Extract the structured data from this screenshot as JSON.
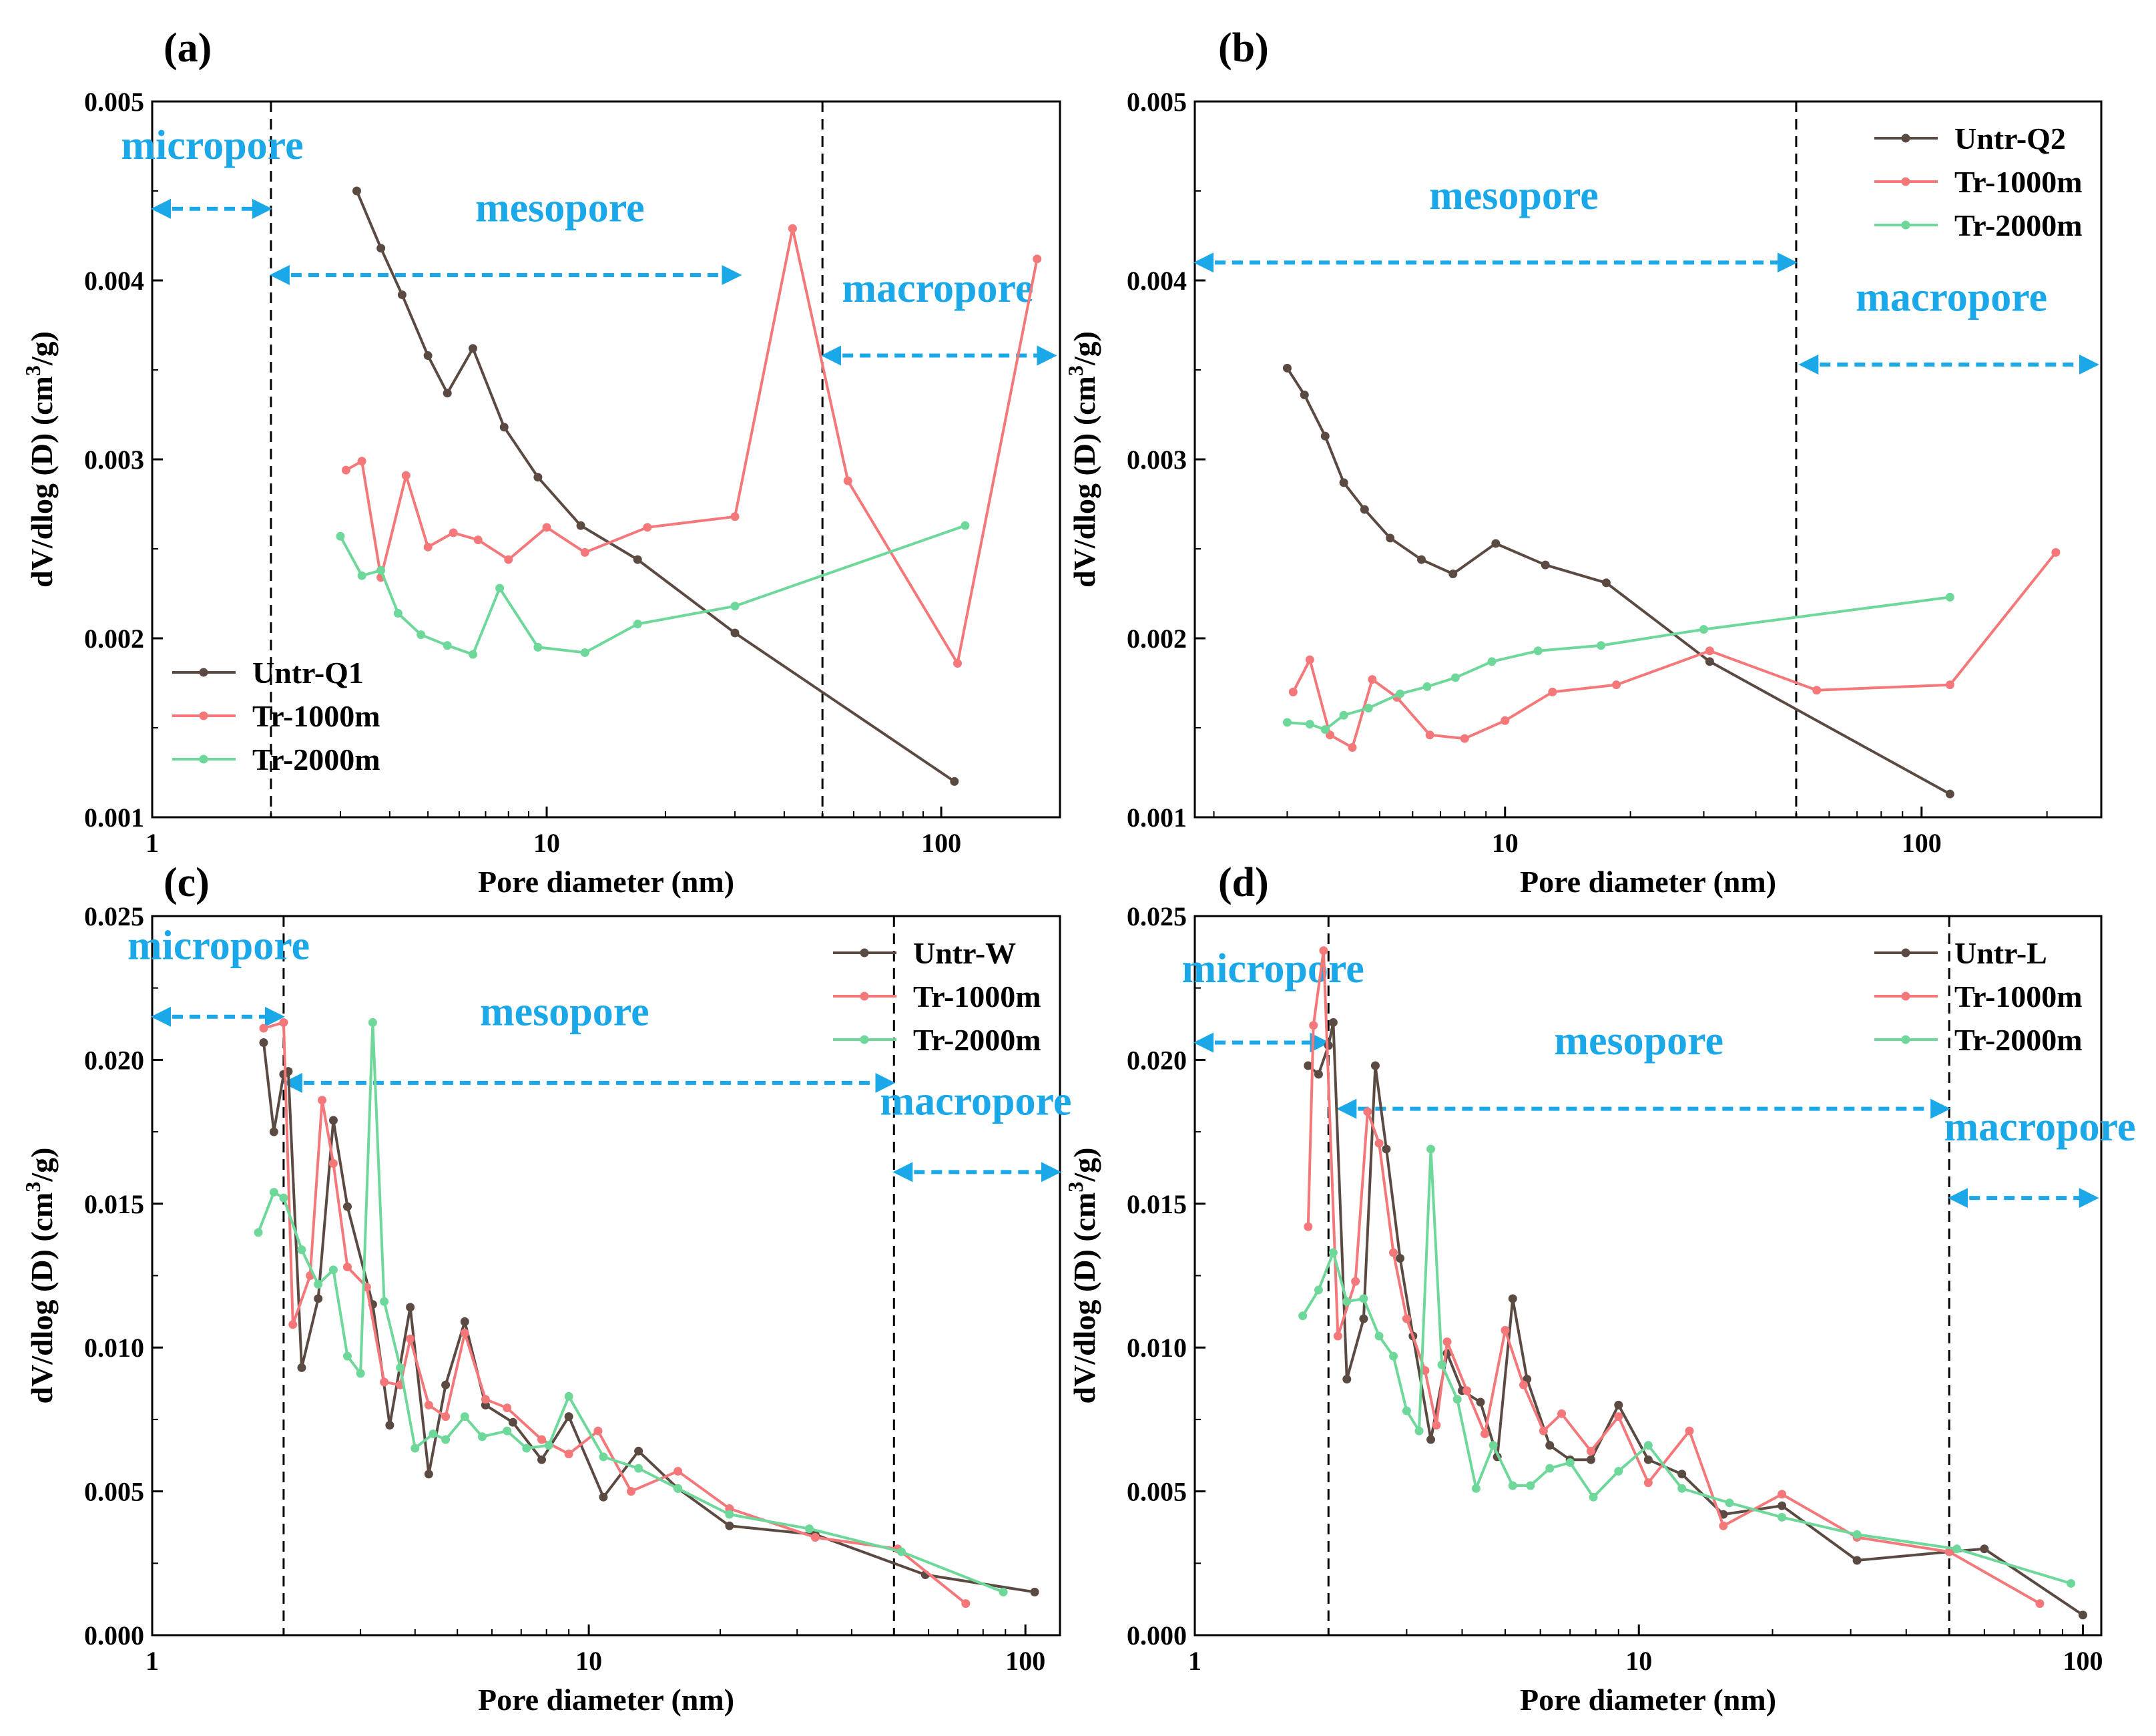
{
  "colors": {
    "untreated": "#5B4A42",
    "tr1000": "#F4777A",
    "tr2000": "#6DD89A",
    "region": "#1BA8E8",
    "axis": "#000000"
  },
  "chart_data": [
    {
      "panel_label": "(a)",
      "type": "line",
      "xscale": "log",
      "xlim": [
        1,
        200
      ],
      "ylim": [
        0.001,
        0.005
      ],
      "xticks": [
        1,
        10,
        100
      ],
      "xtick_labels": [
        "1",
        "10",
        "100"
      ],
      "yticks": [
        0.001,
        0.002,
        0.003,
        0.004,
        0.005
      ],
      "ytick_labels": [
        "0.001",
        "0.002",
        "0.003",
        "0.004",
        "0.005"
      ],
      "xlabel": "Pore diameter (nm)",
      "ylabel_prefix": "dV/dlog (D) (cm",
      "ylabel_sup": "3",
      "ylabel_suffix": "/g)",
      "legend_position": "bottom-left",
      "boundaries": [
        2,
        50
      ],
      "regions": [
        {
          "label": "micropore",
          "x_from": 1,
          "x_to": 2,
          "y_arrow": 0.0044,
          "y_text": 0.00468,
          "x_text": 1.42
        },
        {
          "label": "mesopore",
          "x_from": 2,
          "x_to": 31,
          "y_arrow": 0.00403,
          "y_text": 0.00433,
          "x_text": 10.8
        },
        {
          "label": "macropore",
          "x_from": 50,
          "x_to": 195,
          "y_arrow": 0.00358,
          "y_text": 0.00388,
          "x_text": 98
        }
      ],
      "series": [
        {
          "name": "Untr-Q1",
          "color_key": "untreated",
          "x": [
            3.3,
            3.8,
            4.3,
            5.0,
            5.6,
            6.5,
            7.8,
            9.5,
            12.2,
            17,
            30,
            108
          ],
          "y": [
            0.0045,
            0.00418,
            0.00392,
            0.00358,
            0.00337,
            0.00362,
            0.00318,
            0.0029,
            0.00263,
            0.00244,
            0.00203,
            0.0012
          ]
        },
        {
          "name": "Tr-1000m",
          "color_key": "tr1000",
          "x": [
            3.1,
            3.4,
            3.8,
            4.4,
            5.0,
            5.8,
            6.7,
            8.0,
            10.0,
            12.5,
            18,
            30,
            42,
            58,
            110,
            175
          ],
          "y": [
            0.00294,
            0.00299,
            0.00234,
            0.00291,
            0.00251,
            0.00259,
            0.00255,
            0.00244,
            0.00262,
            0.00248,
            0.00262,
            0.00268,
            0.00429,
            0.00288,
            0.00186,
            0.00412
          ]
        },
        {
          "name": "Tr-2000m",
          "color_key": "tr2000",
          "x": [
            3.0,
            3.4,
            3.8,
            4.2,
            4.8,
            5.6,
            6.5,
            7.6,
            9.5,
            12.5,
            17,
            30,
            115
          ],
          "y": [
            0.00257,
            0.00235,
            0.00238,
            0.00214,
            0.00202,
            0.00196,
            0.00191,
            0.00228,
            0.00195,
            0.00192,
            0.00208,
            0.00218,
            0.00263
          ]
        }
      ]
    },
    {
      "panel_label": "(b)",
      "type": "line",
      "xscale": "log",
      "xlim": [
        1.8,
        270
      ],
      "ylim": [
        0.001,
        0.005
      ],
      "xticks": [
        10,
        100
      ],
      "xtick_labels": [
        "10",
        "100"
      ],
      "yticks": [
        0.001,
        0.002,
        0.003,
        0.004,
        0.005
      ],
      "ytick_labels": [
        "0.001",
        "0.002",
        "0.003",
        "0.004",
        "0.005"
      ],
      "xlabel": "Pore diameter (nm)",
      "ylabel_prefix": "dV/dlog (D) (cm",
      "ylabel_sup": "3",
      "ylabel_suffix": "/g)",
      "legend_position": "top-right",
      "boundaries": [
        50
      ],
      "regions": [
        {
          "label": "mesopore",
          "x_from": 1.8,
          "x_to": 50,
          "y_arrow": 0.0041,
          "y_text": 0.0044,
          "x_text": 10.5
        },
        {
          "label": "macropore",
          "x_from": 51,
          "x_to": 265,
          "y_arrow": 0.00353,
          "y_text": 0.00383,
          "x_text": 118
        }
      ],
      "series": [
        {
          "name": "Untr-Q2",
          "color_key": "untreated",
          "x": [
            3.0,
            3.3,
            3.7,
            4.1,
            4.6,
            5.3,
            6.3,
            7.5,
            9.5,
            12.5,
            17.5,
            31,
            117
          ],
          "y": [
            0.00351,
            0.00336,
            0.00313,
            0.00287,
            0.00272,
            0.00256,
            0.00244,
            0.00236,
            0.00253,
            0.00241,
            0.00231,
            0.00187,
            0.00113
          ]
        },
        {
          "name": "Tr-1000m",
          "color_key": "tr1000",
          "x": [
            3.1,
            3.4,
            3.8,
            4.3,
            4.8,
            5.5,
            6.6,
            8.0,
            10.0,
            13.0,
            18.5,
            31,
            56,
            117,
            210
          ],
          "y": [
            0.0017,
            0.00188,
            0.00146,
            0.00139,
            0.00177,
            0.00167,
            0.00146,
            0.00144,
            0.00154,
            0.0017,
            0.00174,
            0.00193,
            0.00171,
            0.00174,
            0.00248
          ]
        },
        {
          "name": "Tr-2000m",
          "color_key": "tr2000",
          "x": [
            3.0,
            3.4,
            3.7,
            4.1,
            4.7,
            5.6,
            6.5,
            7.6,
            9.3,
            12,
            17,
            30,
            117
          ],
          "y": [
            0.00153,
            0.00152,
            0.00149,
            0.00157,
            0.00161,
            0.00169,
            0.00173,
            0.00178,
            0.00187,
            0.00193,
            0.00196,
            0.00205,
            0.00223
          ]
        }
      ]
    },
    {
      "panel_label": "(c)",
      "type": "line",
      "xscale": "log",
      "xlim": [
        1,
        120
      ],
      "ylim": [
        0,
        0.025
      ],
      "xticks": [
        1,
        10,
        100
      ],
      "xtick_labels": [
        "1",
        "10",
        "100"
      ],
      "yticks": [
        0,
        0.005,
        0.01,
        0.015,
        0.02,
        0.025
      ],
      "ytick_labels": [
        "0.000",
        "0.005",
        "0.010",
        "0.015",
        "0.020",
        "0.025"
      ],
      "xlabel": "Pore diameter (nm)",
      "ylabel_prefix": "dV/dlog (D) (cm",
      "ylabel_sup": "3",
      "ylabel_suffix": "/g)",
      "legend_position": "top-right",
      "boundaries": [
        2,
        50
      ],
      "regions": [
        {
          "label": "micropore",
          "x_from": 1,
          "x_to": 2,
          "y_arrow": 0.0215,
          "y_text": 0.0235,
          "x_text": 1.42
        },
        {
          "label": "mesopore",
          "x_from": 2,
          "x_to": 50,
          "y_arrow": 0.0192,
          "y_text": 0.0212,
          "x_text": 8.8
        },
        {
          "label": "macropore",
          "x_from": 50,
          "x_to": 120,
          "y_arrow": 0.0161,
          "y_text": 0.0181,
          "x_text": 77
        }
      ],
      "series": [
        {
          "name": "Untr-W",
          "color_key": "untreated",
          "x": [
            1.8,
            1.9,
            2.0,
            2.05,
            2.2,
            2.4,
            2.6,
            2.8,
            3.2,
            3.5,
            3.9,
            4.3,
            4.7,
            5.2,
            5.8,
            6.7,
            7.8,
            9.0,
            10.8,
            13.0,
            16.0,
            21,
            33,
            59,
            105
          ],
          "y": [
            0.0206,
            0.0175,
            0.0195,
            0.0196,
            0.0093,
            0.0117,
            0.0179,
            0.0149,
            0.0115,
            0.0073,
            0.0114,
            0.0056,
            0.0087,
            0.0109,
            0.008,
            0.0074,
            0.0061,
            0.0076,
            0.0048,
            0.0064,
            0.0051,
            0.0038,
            0.0035,
            0.0021,
            0.0015
          ]
        },
        {
          "name": "Tr-1000m",
          "color_key": "tr1000",
          "x": [
            1.8,
            2.0,
            2.1,
            2.3,
            2.45,
            2.6,
            2.8,
            3.1,
            3.4,
            3.7,
            3.9,
            4.3,
            4.7,
            5.2,
            5.8,
            6.5,
            7.8,
            9.0,
            10.5,
            12.5,
            16.0,
            21,
            33,
            51,
            73
          ],
          "y": [
            0.0211,
            0.0213,
            0.0108,
            0.0125,
            0.0186,
            0.0164,
            0.0128,
            0.0121,
            0.0088,
            0.0087,
            0.0103,
            0.008,
            0.0076,
            0.0105,
            0.0082,
            0.0079,
            0.0068,
            0.0063,
            0.0071,
            0.005,
            0.0057,
            0.0044,
            0.0034,
            0.003,
            0.0011
          ]
        },
        {
          "name": "Tr-2000m",
          "color_key": "tr2000",
          "x": [
            1.75,
            1.9,
            2.0,
            2.2,
            2.4,
            2.6,
            2.8,
            3.0,
            3.2,
            3.4,
            3.7,
            4.0,
            4.4,
            4.7,
            5.2,
            5.7,
            6.5,
            7.2,
            8.1,
            9.0,
            10.8,
            13.0,
            16.0,
            21,
            32,
            52,
            89
          ],
          "y": [
            0.014,
            0.0154,
            0.0152,
            0.0134,
            0.0122,
            0.0127,
            0.0097,
            0.0091,
            0.0213,
            0.0116,
            0.0093,
            0.0065,
            0.007,
            0.0068,
            0.0076,
            0.0069,
            0.0071,
            0.0065,
            0.0066,
            0.0083,
            0.0062,
            0.0058,
            0.0051,
            0.0042,
            0.0037,
            0.0029,
            0.0015
          ]
        }
      ]
    },
    {
      "panel_label": "(d)",
      "type": "line",
      "xscale": "log",
      "xlim": [
        1,
        110
      ],
      "ylim": [
        0,
        0.025
      ],
      "xticks": [
        1,
        10,
        100
      ],
      "xtick_labels": [
        "1",
        "10",
        "100"
      ],
      "yticks": [
        0,
        0.005,
        0.01,
        0.015,
        0.02,
        0.025
      ],
      "ytick_labels": [
        "0.000",
        "0.005",
        "0.010",
        "0.015",
        "0.020",
        "0.025"
      ],
      "xlabel": "Pore diameter (nm)",
      "ylabel_prefix": "dV/dlog (D) (cm",
      "ylabel_sup": "3",
      "ylabel_suffix": "/g)",
      "legend_position": "top-right",
      "boundaries": [
        2,
        50
      ],
      "regions": [
        {
          "label": "micropore",
          "x_from": 1,
          "x_to": 2,
          "y_arrow": 0.0206,
          "y_text": 0.0227,
          "x_text": 1.5
        },
        {
          "label": "mesopore",
          "x_from": 2.1,
          "x_to": 50,
          "y_arrow": 0.0183,
          "y_text": 0.0202,
          "x_text": 10
        },
        {
          "label": "macropore",
          "x_from": 50,
          "x_to": 108,
          "y_arrow": 0.0152,
          "y_text": 0.0172,
          "x_text": 80
        }
      ],
      "series": [
        {
          "name": "Untr-L",
          "color_key": "untreated",
          "x": [
            1.8,
            1.9,
            2.0,
            2.05,
            2.2,
            2.4,
            2.55,
            2.7,
            2.9,
            3.1,
            3.4,
            3.7,
            4.0,
            4.4,
            4.8,
            5.2,
            5.6,
            6.3,
            7.0,
            7.8,
            9.0,
            10.5,
            12.5,
            15.5,
            21,
            31,
            50,
            60,
            100
          ],
          "y": [
            0.0198,
            0.0195,
            0.0205,
            0.0213,
            0.0089,
            0.011,
            0.0198,
            0.0169,
            0.0131,
            0.0104,
            0.0068,
            0.0098,
            0.0085,
            0.0081,
            0.0062,
            0.0117,
            0.0089,
            0.0066,
            0.0061,
            0.0061,
            0.008,
            0.0061,
            0.0056,
            0.0042,
            0.0045,
            0.0026,
            0.0029,
            0.003,
            0.0007
          ]
        },
        {
          "name": "Tr-1000m",
          "color_key": "tr1000",
          "x": [
            1.8,
            1.85,
            1.95,
            2.1,
            2.3,
            2.45,
            2.6,
            2.8,
            3.0,
            3.3,
            3.5,
            3.7,
            4.1,
            4.5,
            5.0,
            5.5,
            6.1,
            6.7,
            7.8,
            9.0,
            10.5,
            13.0,
            15.5,
            21,
            31,
            50,
            80
          ],
          "y": [
            0.0142,
            0.0212,
            0.0238,
            0.0104,
            0.0123,
            0.0182,
            0.0171,
            0.0133,
            0.011,
            0.0092,
            0.0073,
            0.0102,
            0.0085,
            0.007,
            0.0106,
            0.0087,
            0.0071,
            0.0077,
            0.0064,
            0.0076,
            0.0053,
            0.0071,
            0.0038,
            0.0049,
            0.0034,
            0.0029,
            0.0011
          ]
        },
        {
          "name": "Tr-2000m",
          "color_key": "tr2000",
          "x": [
            1.75,
            1.9,
            2.05,
            2.2,
            2.4,
            2.6,
            2.8,
            3.0,
            3.2,
            3.4,
            3.6,
            3.9,
            4.3,
            4.7,
            5.2,
            5.7,
            6.3,
            7.0,
            7.9,
            9.0,
            10.5,
            12.5,
            16.0,
            21,
            31,
            52,
            94
          ],
          "y": [
            0.0111,
            0.012,
            0.0133,
            0.0116,
            0.0117,
            0.0104,
            0.0097,
            0.0078,
            0.0071,
            0.0169,
            0.0094,
            0.0082,
            0.0051,
            0.0066,
            0.0052,
            0.0052,
            0.0058,
            0.006,
            0.0048,
            0.0057,
            0.0066,
            0.0051,
            0.0046,
            0.0041,
            0.0035,
            0.003,
            0.0018
          ]
        }
      ]
    }
  ]
}
